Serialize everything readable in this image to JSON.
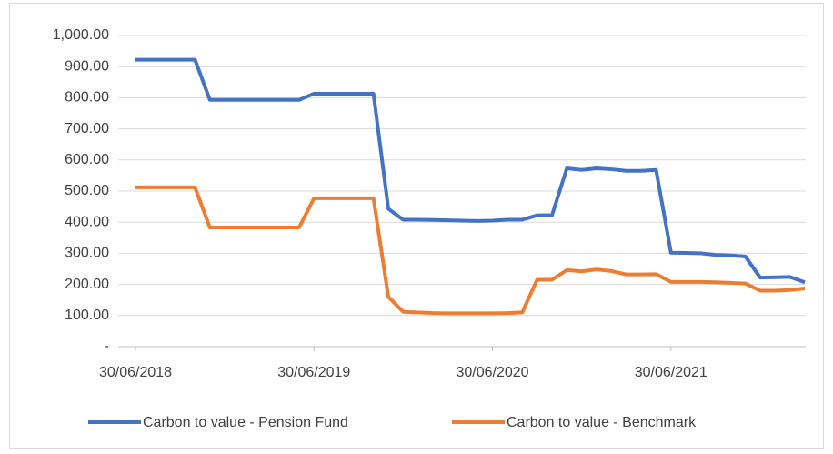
{
  "chart_data": {
    "type": "line",
    "categories": [
      "30/06/2018",
      null,
      null,
      null,
      null,
      null,
      null,
      null,
      null,
      null,
      null,
      null,
      "30/06/2019",
      null,
      null,
      null,
      null,
      null,
      null,
      null,
      null,
      null,
      null,
      null,
      "30/06/2020",
      null,
      null,
      null,
      null,
      null,
      null,
      null,
      null,
      null,
      null,
      null,
      "30/06/2021",
      null,
      null,
      null,
      null,
      null,
      null,
      null,
      null,
      null
    ],
    "series": [
      {
        "name": "Carbon to value - Pension Fund",
        "color": "#4472c4",
        "values": [
          922,
          922,
          922,
          922,
          922,
          793,
          793,
          793,
          793,
          793,
          793,
          793,
          813,
          813,
          813,
          813,
          813,
          443,
          408,
          408,
          407,
          406,
          405,
          404,
          405,
          408,
          408,
          422,
          422,
          573,
          568,
          573,
          570,
          565,
          565,
          568,
          302,
          301,
          300,
          295,
          293,
          290,
          222,
          223,
          224,
          207
        ]
      },
      {
        "name": "Carbon to value - Benchmark",
        "color": "#ed7d31",
        "values": [
          512,
          512,
          512,
          512,
          512,
          383,
          383,
          383,
          383,
          383,
          383,
          383,
          477,
          477,
          477,
          477,
          477,
          160,
          112,
          110,
          108,
          107,
          107,
          107,
          107,
          108,
          110,
          215,
          215,
          246,
          242,
          248,
          243,
          232,
          232,
          233,
          208,
          208,
          208,
          207,
          205,
          203,
          180,
          180,
          182,
          187
        ]
      }
    ],
    "ylim": [
      0,
      1000
    ],
    "yticks": [
      {
        "value": 0,
        "label": "-"
      },
      {
        "value": 100,
        "label": "100.00"
      },
      {
        "value": 200,
        "label": "200.00"
      },
      {
        "value": 300,
        "label": "300.00"
      },
      {
        "value": 400,
        "label": "400.00"
      },
      {
        "value": 500,
        "label": "500.00"
      },
      {
        "value": 600,
        "label": "600.00"
      },
      {
        "value": 700,
        "label": "700.00"
      },
      {
        "value": 800,
        "label": "800.00"
      },
      {
        "value": 900,
        "label": "900.00"
      },
      {
        "value": 1000,
        "label": "1,000.00"
      }
    ],
    "grid": true,
    "legend": "bottom"
  }
}
